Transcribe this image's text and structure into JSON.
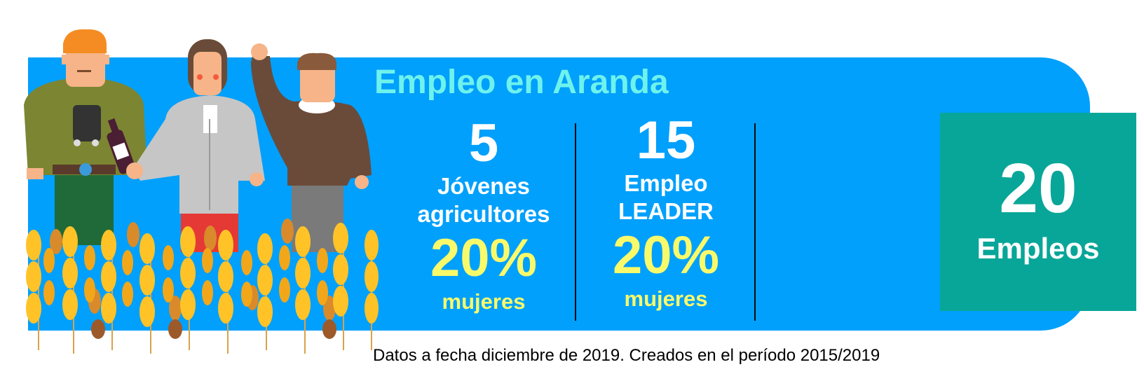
{
  "title": "Empleo en Aranda",
  "stats": [
    {
      "number": "5",
      "label_line1": "Jóvenes",
      "label_line2": "agricultores",
      "percent": "20%",
      "percent_label": "mujeres"
    },
    {
      "number": "15",
      "label_line1": "Empleo",
      "label_line2": "LEADER",
      "percent": "20%",
      "percent_label": "mujeres"
    }
  ],
  "total": {
    "number": "20",
    "label": "Empleos"
  },
  "footnote": "Datos a fecha diciembre de 2019. Creados en el período 2015/2019",
  "colors": {
    "banner": "#00A0FC",
    "title": "#6EF2EC",
    "highlight": "#F9FA6A",
    "total_box": "#08A698"
  },
  "illustration": {
    "icon": "farmers-and-wheat-illustration"
  }
}
